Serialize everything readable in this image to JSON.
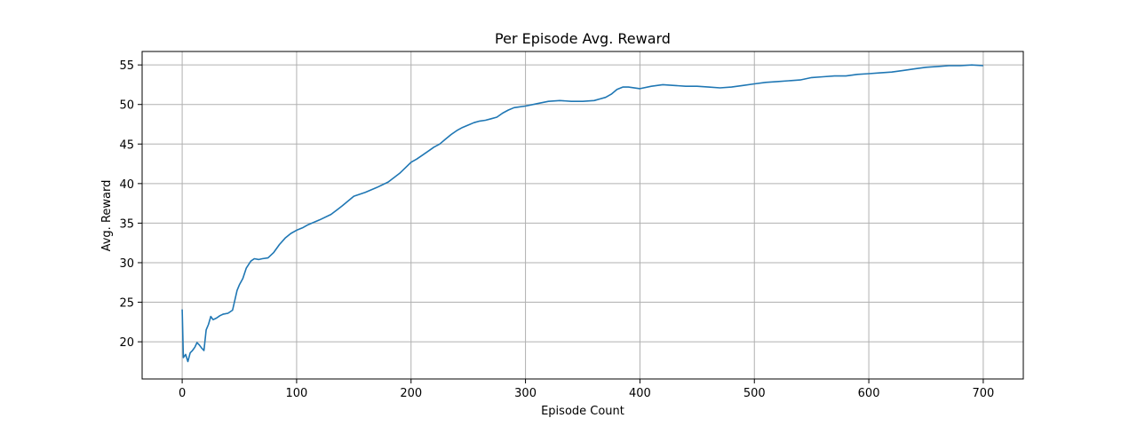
{
  "chart_data": {
    "type": "line",
    "title": "Per Episode Avg. Reward",
    "xlabel": "Episode Count",
    "ylabel": "Avg. Reward",
    "xlim": [
      -35,
      735
    ],
    "ylim": [
      15.3,
      56.7
    ],
    "xticks": [
      0,
      100,
      200,
      300,
      400,
      500,
      600,
      700
    ],
    "yticks": [
      20,
      25,
      30,
      35,
      40,
      45,
      50,
      55
    ],
    "grid": true,
    "line_color": "#1f77b4",
    "series": [
      {
        "x": [
          0,
          1,
          3,
          5,
          7,
          9,
          11,
          13,
          15,
          17,
          19,
          21,
          23,
          25,
          27,
          30,
          33,
          36,
          40,
          44,
          48,
          50,
          53,
          56,
          60,
          63,
          67,
          70,
          75,
          80,
          85,
          90,
          95,
          100,
          105,
          110,
          120,
          130,
          140,
          150,
          160,
          170,
          180,
          190,
          200,
          205,
          210,
          215,
          220,
          225,
          230,
          235,
          240,
          245,
          250,
          255,
          260,
          265,
          270,
          275,
          280,
          285,
          290,
          300,
          310,
          320,
          330,
          340,
          350,
          360,
          365,
          370,
          375,
          380,
          385,
          390,
          400,
          410,
          420,
          430,
          440,
          450,
          460,
          470,
          480,
          490,
          500,
          510,
          520,
          530,
          540,
          550,
          560,
          570,
          580,
          590,
          600,
          610,
          620,
          630,
          640,
          650,
          660,
          670,
          680,
          690,
          700
        ],
        "y": [
          24.1,
          18.0,
          18.4,
          17.5,
          18.6,
          18.9,
          19.3,
          19.9,
          19.6,
          19.2,
          18.9,
          21.5,
          22.2,
          23.2,
          22.8,
          23.0,
          23.3,
          23.5,
          23.6,
          24.0,
          26.5,
          27.2,
          28.0,
          29.3,
          30.2,
          30.5,
          30.4,
          30.5,
          30.6,
          31.3,
          32.3,
          33.1,
          33.7,
          34.1,
          34.4,
          34.8,
          35.4,
          36.1,
          37.2,
          38.4,
          38.9,
          39.5,
          40.2,
          41.3,
          42.7,
          43.1,
          43.6,
          44.1,
          44.6,
          45.0,
          45.6,
          46.2,
          46.7,
          47.1,
          47.4,
          47.7,
          47.9,
          48.0,
          48.2,
          48.4,
          48.9,
          49.3,
          49.6,
          49.8,
          50.1,
          50.4,
          50.5,
          50.4,
          50.4,
          50.5,
          50.7,
          50.9,
          51.3,
          51.9,
          52.2,
          52.2,
          52.0,
          52.3,
          52.5,
          52.4,
          52.3,
          52.3,
          52.2,
          52.1,
          52.2,
          52.4,
          52.6,
          52.8,
          52.9,
          53.0,
          53.1,
          53.4,
          53.5,
          53.6,
          53.6,
          53.8,
          53.9,
          54.0,
          54.1,
          54.3,
          54.5,
          54.7,
          54.8,
          54.9,
          54.9,
          55.0,
          54.9
        ]
      }
    ]
  }
}
